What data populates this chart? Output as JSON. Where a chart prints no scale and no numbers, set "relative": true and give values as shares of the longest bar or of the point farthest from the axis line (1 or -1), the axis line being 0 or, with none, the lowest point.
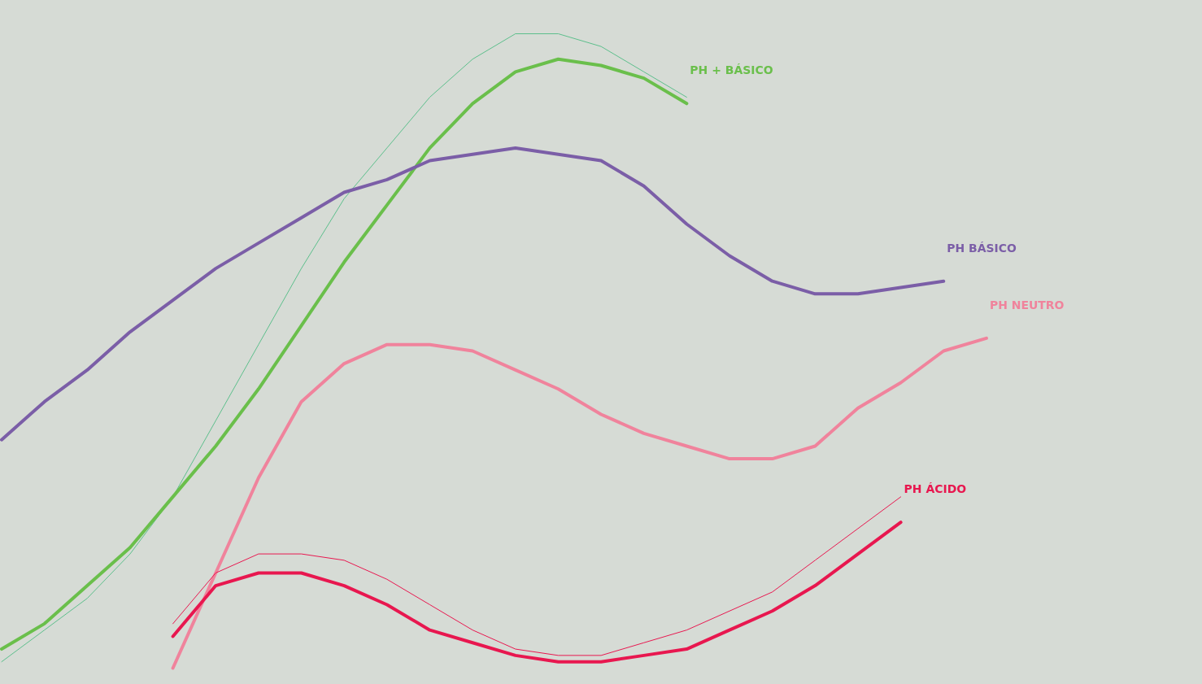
{
  "chart_data": {
    "type": "line",
    "relative": true,
    "legend": false,
    "grid": false,
    "categories": [
      null,
      null,
      null,
      null,
      null,
      null,
      null,
      null,
      null,
      null,
      null,
      null,
      null,
      null,
      null,
      null,
      null,
      null,
      null,
      null,
      null,
      null,
      null,
      null,
      null,
      null
    ],
    "series": [
      {
        "color": "#5cbf8c",
        "values": [
          0.01,
          0.06,
          0.11,
          0.18,
          0.27,
          0.39,
          0.51,
          0.63,
          0.74,
          0.82,
          0.9,
          0.96,
          1.0,
          1.0,
          0.98,
          0.94,
          0.9,
          null,
          null,
          null,
          null,
          null,
          null,
          null,
          null,
          null
        ]
      },
      {
        "name": "PH + BÁSICO",
        "color": "#6abf4b",
        "values": [
          0.03,
          0.07,
          0.13,
          0.19,
          0.27,
          0.35,
          0.44,
          0.54,
          0.64,
          0.73,
          0.82,
          0.89,
          0.94,
          0.96,
          0.95,
          0.93,
          0.89,
          null,
          null,
          null,
          null,
          null,
          null,
          null,
          null,
          null
        ]
      },
      {
        "name": "PH BÁSICO",
        "color": "#7b5ea7",
        "values": [
          0.36,
          0.42,
          0.47,
          0.53,
          0.58,
          0.63,
          0.67,
          0.71,
          0.75,
          0.77,
          0.8,
          0.81,
          0.82,
          0.81,
          0.8,
          0.76,
          0.7,
          0.65,
          0.61,
          0.59,
          0.59,
          0.6,
          0.61,
          null,
          null,
          null
        ]
      },
      {
        "name": "PH NEUTRO",
        "color": "#f0839c",
        "values": [
          null,
          null,
          null,
          null,
          0,
          0.15,
          0.3,
          0.42,
          0.48,
          0.51,
          0.51,
          0.5,
          0.47,
          0.44,
          0.4,
          0.37,
          0.35,
          0.33,
          0.33,
          0.35,
          0.41,
          0.45,
          0.5,
          0.52,
          null,
          null
        ]
      },
      {
        "color": "#e8174f",
        "values": [
          null,
          null,
          null,
          null,
          0.07,
          0.15,
          0.18,
          0.18,
          0.17,
          0.14,
          0.1,
          0.06,
          0.03,
          0.02,
          0.02,
          0.04,
          0.06,
          0.09,
          0.12,
          0.17,
          0.22,
          0.27,
          null,
          null,
          null,
          null
        ]
      },
      {
        "name": "PH ÁCIDO",
        "color": "#e8174f",
        "values": [
          null,
          null,
          null,
          null,
          0.05,
          0.13,
          0.15,
          0.15,
          0.13,
          0.1,
          0.06,
          0.04,
          0.02,
          0.01,
          0.01,
          0.02,
          0.03,
          0.06,
          0.09,
          0.13,
          0.18,
          0.23,
          null,
          null,
          null,
          null
        ]
      }
    ]
  }
}
